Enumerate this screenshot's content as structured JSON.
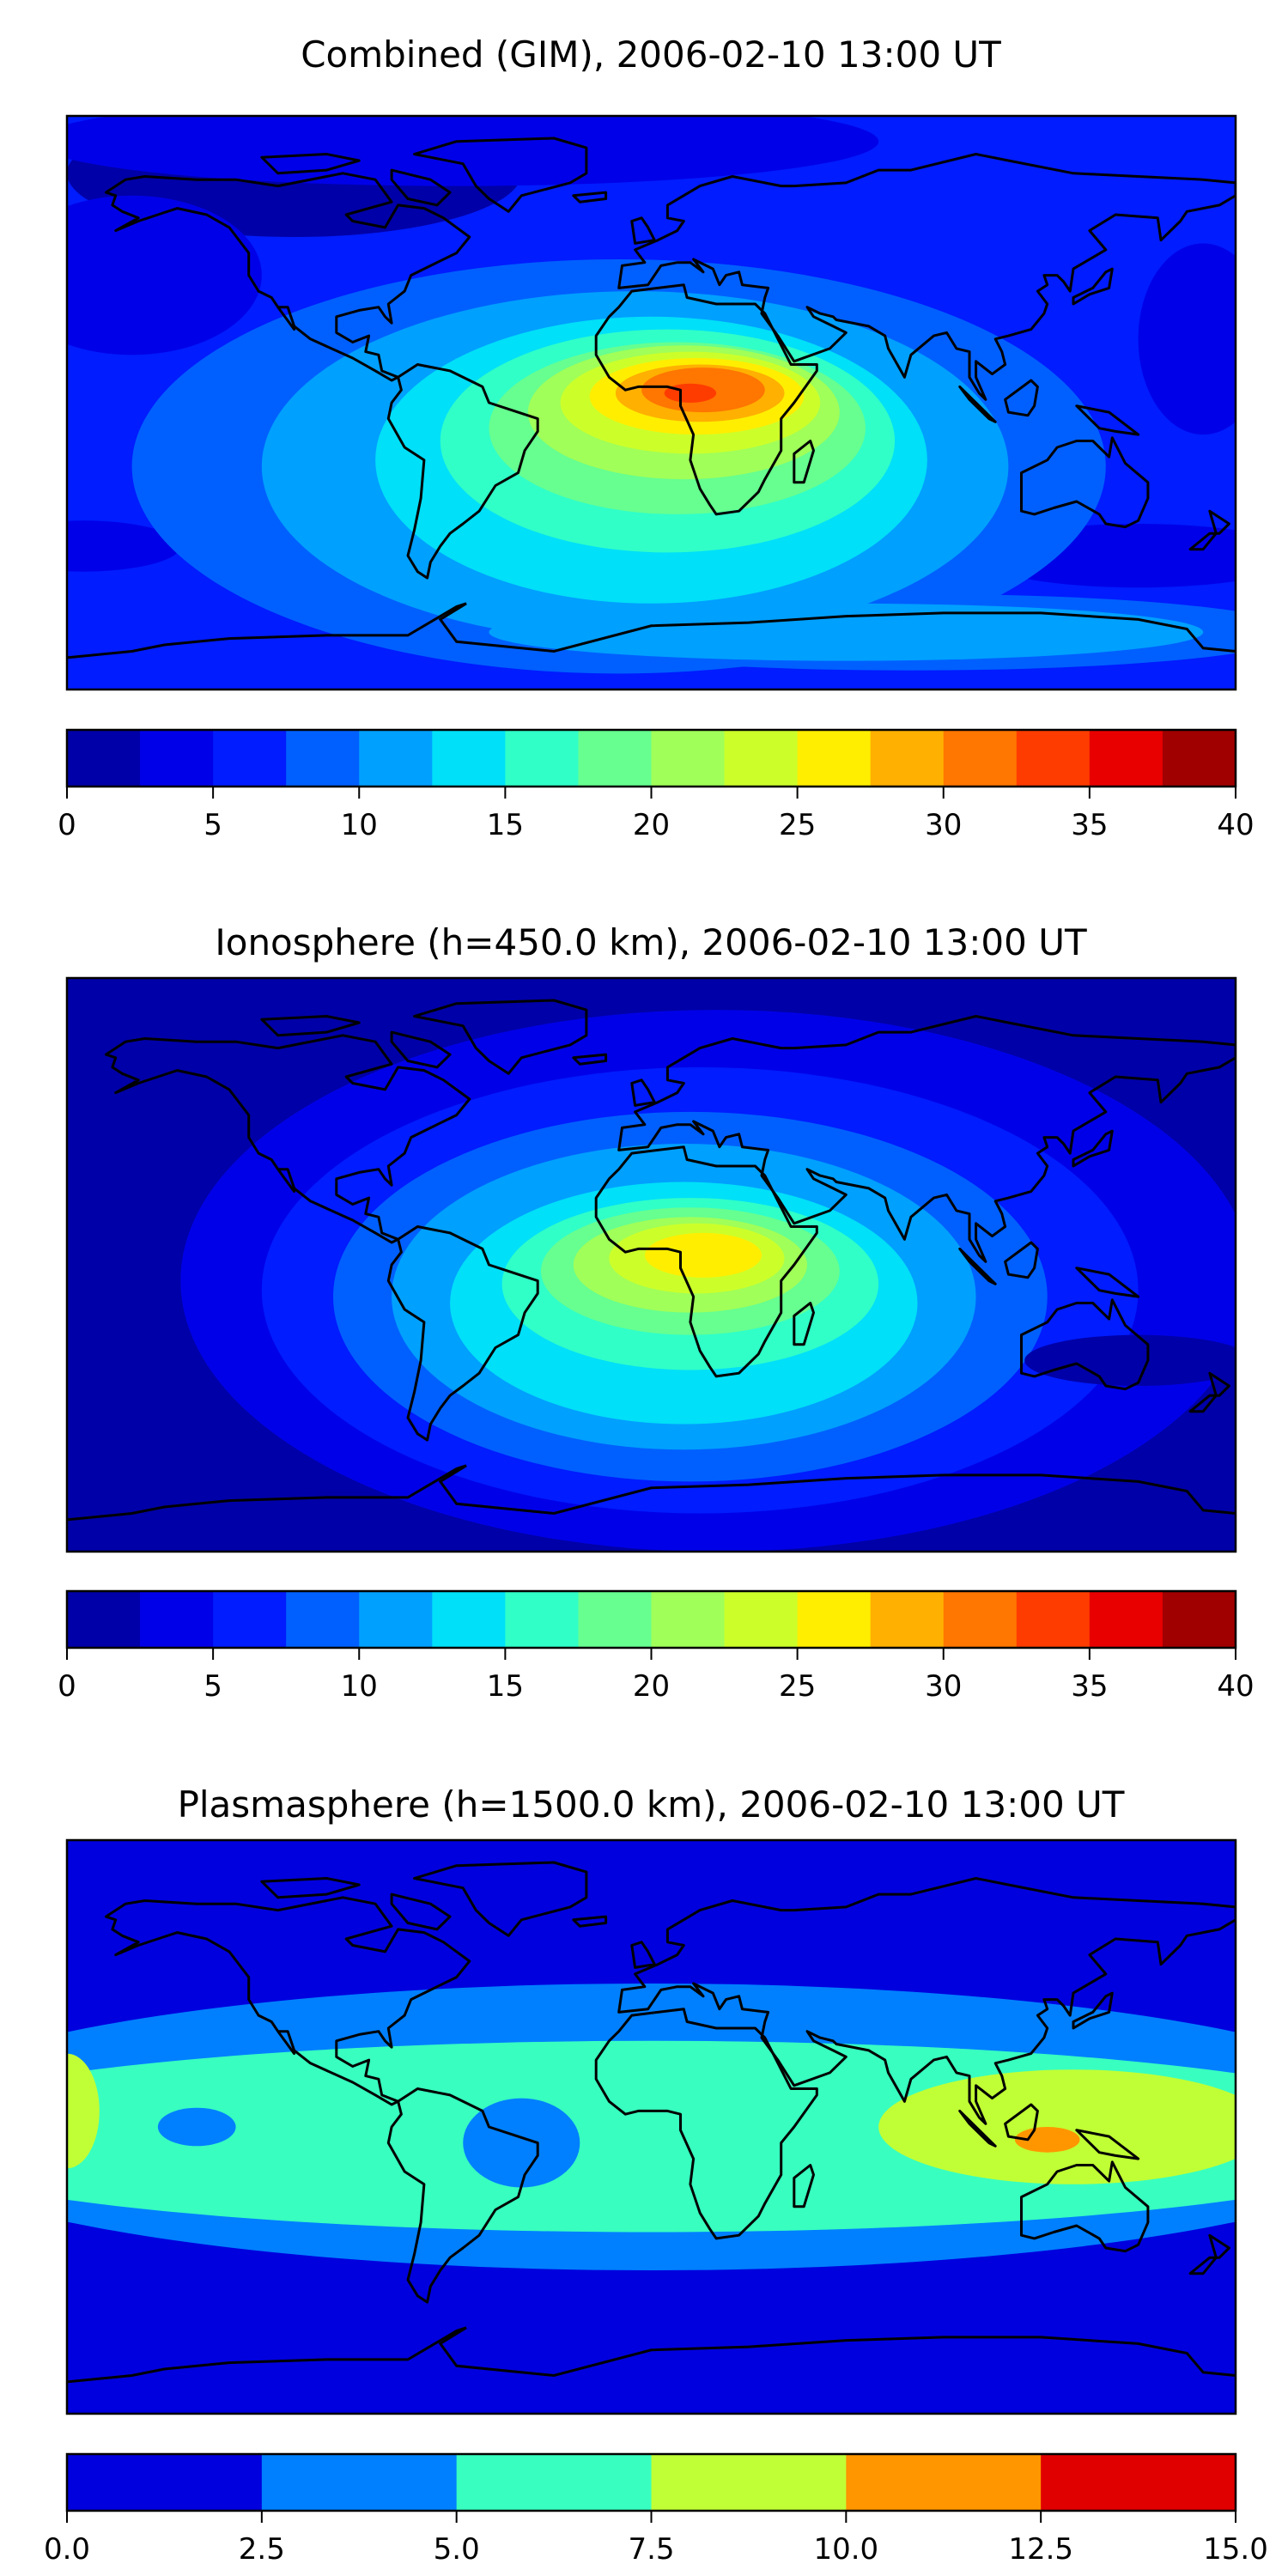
{
  "chart_data": [
    {
      "type": "heatmap",
      "title": "Combined (GIM), 2006-02-10 13:00 UT",
      "projection": "equirectangular",
      "lon_range": [
        -180,
        180
      ],
      "lat_range": [
        -90,
        90
      ],
      "colorbar": {
        "levels": [
          0,
          2.5,
          5,
          7.5,
          10,
          12.5,
          15,
          17.5,
          20,
          22.5,
          25,
          27.5,
          30,
          32.5,
          35,
          37.5,
          40
        ],
        "ticks": [
          "0",
          "5",
          "10",
          "15",
          "20",
          "25",
          "30",
          "35",
          "40"
        ],
        "tick_values": [
          0,
          5,
          10,
          15,
          20,
          25,
          30,
          35,
          40
        ],
        "colors": [
          "#0000a8",
          "#0000e8",
          "#001cff",
          "#0060ff",
          "#00a0ff",
          "#00e0f8",
          "#30ffc8",
          "#66ff90",
          "#a0ff58",
          "#ccff2a",
          "#ffee00",
          "#ffb000",
          "#ff7600",
          "#ff3c00",
          "#e80000",
          "#a00000"
        ],
        "range": [
          0,
          40
        ]
      },
      "peak_region": "Africa (~lon 10-40, lat 0-10)",
      "max_value_band": [
        32.5,
        35
      ]
    },
    {
      "type": "heatmap",
      "title": "Ionosphere  (h=450.0 km), 2006-02-10 13:00 UT",
      "projection": "equirectangular",
      "lon_range": [
        -180,
        180
      ],
      "lat_range": [
        -90,
        90
      ],
      "colorbar": {
        "levels": [
          0,
          2.5,
          5,
          7.5,
          10,
          12.5,
          15,
          17.5,
          20,
          22.5,
          25,
          27.5,
          30,
          32.5,
          35,
          37.5,
          40
        ],
        "ticks": [
          "0",
          "5",
          "10",
          "15",
          "20",
          "25",
          "30",
          "35",
          "40"
        ],
        "tick_values": [
          0,
          5,
          10,
          15,
          20,
          25,
          30,
          35,
          40
        ],
        "colors": [
          "#0000a8",
          "#0000e8",
          "#001cff",
          "#0060ff",
          "#00a0ff",
          "#00e0f8",
          "#30ffc8",
          "#66ff90",
          "#a0ff58",
          "#ccff2a",
          "#ffee00",
          "#ffb000",
          "#ff7600",
          "#ff3c00",
          "#e80000",
          "#a00000"
        ],
        "range": [
          0,
          40
        ]
      },
      "peak_region": "Africa (~lon 10-30, lat 0-10)",
      "max_value_band": [
        25,
        27.5
      ]
    },
    {
      "type": "heatmap",
      "title": "Plasmasphere (h=1500.0 km), 2006-02-10 13:00 UT",
      "projection": "equirectangular",
      "lon_range": [
        -180,
        180
      ],
      "lat_range": [
        -90,
        90
      ],
      "colorbar": {
        "levels": [
          0,
          2.5,
          5,
          7.5,
          10,
          12.5,
          15
        ],
        "ticks": [
          "0.0",
          "2.5",
          "5.0",
          "7.5",
          "10.0",
          "12.5",
          "15.0"
        ],
        "tick_values": [
          0,
          2.5,
          5,
          7.5,
          10,
          12.5,
          15
        ],
        "colors": [
          "#0000de",
          "#0080ff",
          "#38ffc0",
          "#c0ff35",
          "#ff9600",
          "#e00000"
        ],
        "range": [
          0,
          15
        ]
      },
      "peak_region": "Indonesia (~lon 120, lat -5)",
      "max_value_band": [
        10,
        12.5
      ]
    }
  ]
}
